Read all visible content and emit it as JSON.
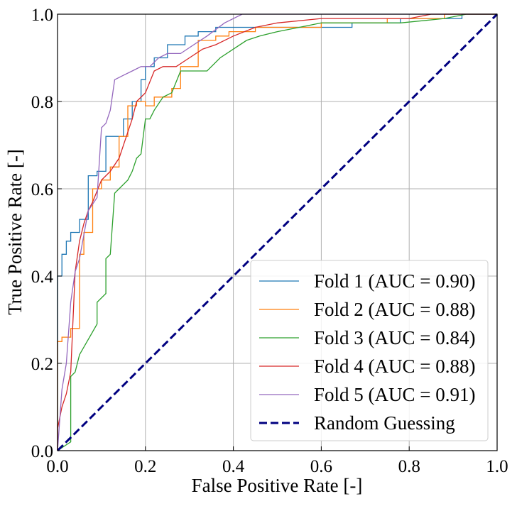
{
  "chart_data": {
    "type": "line",
    "title": "",
    "xlabel": "False Positive Rate [-]",
    "ylabel": "True Positive Rate [-]",
    "xlim": [
      0,
      1
    ],
    "ylim": [
      0,
      1
    ],
    "xticks": [
      "0.0",
      "0.2",
      "0.4",
      "0.6",
      "0.8",
      "1.0"
    ],
    "yticks": [
      "0.0",
      "0.2",
      "0.4",
      "0.6",
      "0.8",
      "1.0"
    ],
    "grid": true,
    "legend_position": "lower-right",
    "series": [
      {
        "name": "Fold 1 (AUC = 0.90)",
        "color": "#1f77b4",
        "style": "step",
        "x": [
          0.0,
          0.0,
          0.01,
          0.01,
          0.02,
          0.02,
          0.03,
          0.03,
          0.04,
          0.04,
          0.05,
          0.05,
          0.07,
          0.07,
          0.09,
          0.09,
          0.11,
          0.11,
          0.12,
          0.12,
          0.15,
          0.15,
          0.17,
          0.17,
          0.19,
          0.19,
          0.2,
          0.2,
          0.22,
          0.22,
          0.25,
          0.25,
          0.29,
          0.29,
          0.32,
          0.32,
          0.36,
          0.36,
          0.42,
          0.42,
          0.58,
          0.58,
          0.67,
          0.67,
          0.78,
          0.78,
          0.92,
          0.92,
          1.0
        ],
        "y": [
          0.0,
          0.4,
          0.4,
          0.45,
          0.45,
          0.48,
          0.48,
          0.5,
          0.5,
          0.5,
          0.5,
          0.53,
          0.53,
          0.63,
          0.63,
          0.64,
          0.64,
          0.72,
          0.72,
          0.72,
          0.72,
          0.76,
          0.76,
          0.8,
          0.8,
          0.85,
          0.85,
          0.88,
          0.88,
          0.9,
          0.9,
          0.93,
          0.93,
          0.95,
          0.95,
          0.96,
          0.96,
          0.97,
          0.97,
          0.97,
          0.97,
          0.97,
          0.97,
          0.98,
          0.98,
          0.99,
          0.99,
          1.0,
          1.0
        ]
      },
      {
        "name": "Fold 2 (AUC = 0.88)",
        "color": "#ff7f0e",
        "style": "step",
        "x": [
          0.0,
          0.0,
          0.01,
          0.01,
          0.03,
          0.03,
          0.05,
          0.05,
          0.06,
          0.06,
          0.08,
          0.08,
          0.1,
          0.1,
          0.12,
          0.12,
          0.14,
          0.14,
          0.16,
          0.16,
          0.18,
          0.18,
          0.2,
          0.2,
          0.22,
          0.22,
          0.26,
          0.26,
          0.28,
          0.28,
          0.32,
          0.32,
          0.36,
          0.36,
          0.39,
          0.39,
          0.45,
          0.45,
          0.6,
          0.6,
          0.75,
          0.75,
          0.88,
          0.88,
          1.0
        ],
        "y": [
          0.0,
          0.25,
          0.25,
          0.26,
          0.26,
          0.28,
          0.28,
          0.45,
          0.45,
          0.5,
          0.5,
          0.6,
          0.6,
          0.62,
          0.62,
          0.65,
          0.65,
          0.72,
          0.72,
          0.79,
          0.79,
          0.8,
          0.8,
          0.79,
          0.79,
          0.81,
          0.81,
          0.83,
          0.83,
          0.88,
          0.88,
          0.94,
          0.94,
          0.95,
          0.95,
          0.96,
          0.96,
          0.97,
          0.97,
          0.98,
          0.98,
          0.99,
          0.99,
          1.0,
          1.0
        ]
      },
      {
        "name": "Fold 3 (AUC = 0.84)",
        "color": "#2ca02c",
        "style": "line",
        "x": [
          0.0,
          0.03,
          0.03,
          0.04,
          0.05,
          0.09,
          0.09,
          0.11,
          0.11,
          0.12,
          0.13,
          0.16,
          0.17,
          0.18,
          0.19,
          0.2,
          0.21,
          0.22,
          0.24,
          0.26,
          0.28,
          0.31,
          0.34,
          0.37,
          0.4,
          0.43,
          0.46,
          0.5,
          0.55,
          0.6,
          0.7,
          0.78,
          0.88,
          0.93,
          1.0
        ],
        "y": [
          0.0,
          0.02,
          0.17,
          0.18,
          0.22,
          0.29,
          0.34,
          0.36,
          0.44,
          0.45,
          0.59,
          0.62,
          0.64,
          0.67,
          0.68,
          0.76,
          0.76,
          0.78,
          0.81,
          0.82,
          0.87,
          0.87,
          0.87,
          0.9,
          0.92,
          0.94,
          0.95,
          0.96,
          0.97,
          0.98,
          0.98,
          0.98,
          0.99,
          1.0,
          1.0
        ]
      },
      {
        "name": "Fold 4 (AUC = 0.88)",
        "color": "#d62728",
        "style": "line",
        "x": [
          0.0,
          0.0,
          0.01,
          0.02,
          0.03,
          0.04,
          0.05,
          0.06,
          0.07,
          0.08,
          0.1,
          0.11,
          0.12,
          0.14,
          0.16,
          0.17,
          0.18,
          0.2,
          0.22,
          0.24,
          0.27,
          0.3,
          0.33,
          0.36,
          0.38,
          0.4,
          0.45,
          0.5,
          0.6,
          0.7,
          0.8,
          0.85,
          1.0
        ],
        "y": [
          0.0,
          0.05,
          0.1,
          0.13,
          0.18,
          0.41,
          0.48,
          0.52,
          0.55,
          0.57,
          0.62,
          0.63,
          0.64,
          0.67,
          0.73,
          0.76,
          0.8,
          0.82,
          0.87,
          0.88,
          0.88,
          0.9,
          0.92,
          0.93,
          0.94,
          0.95,
          0.97,
          0.98,
          0.99,
          0.99,
          0.99,
          1.0,
          1.0
        ]
      },
      {
        "name": "Fold 5 (AUC = 0.91)",
        "color": "#9467bd",
        "style": "line",
        "x": [
          0.0,
          0.01,
          0.02,
          0.03,
          0.04,
          0.05,
          0.07,
          0.09,
          0.1,
          0.11,
          0.12,
          0.13,
          0.15,
          0.17,
          0.19,
          0.21,
          0.23,
          0.25,
          0.28,
          0.31,
          0.34,
          0.38,
          0.42,
          0.45,
          0.5,
          0.6,
          0.8,
          1.0
        ],
        "y": [
          0.0,
          0.14,
          0.2,
          0.34,
          0.41,
          0.44,
          0.55,
          0.58,
          0.74,
          0.75,
          0.78,
          0.85,
          0.86,
          0.87,
          0.88,
          0.88,
          0.9,
          0.91,
          0.91,
          0.93,
          0.95,
          0.98,
          1.0,
          1.0,
          1.0,
          1.0,
          1.0,
          1.0
        ]
      },
      {
        "name": "Random Guessing",
        "color": "#000080",
        "style": "dashed",
        "x": [
          0.0,
          1.0
        ],
        "y": [
          0.0,
          1.0
        ]
      }
    ]
  }
}
